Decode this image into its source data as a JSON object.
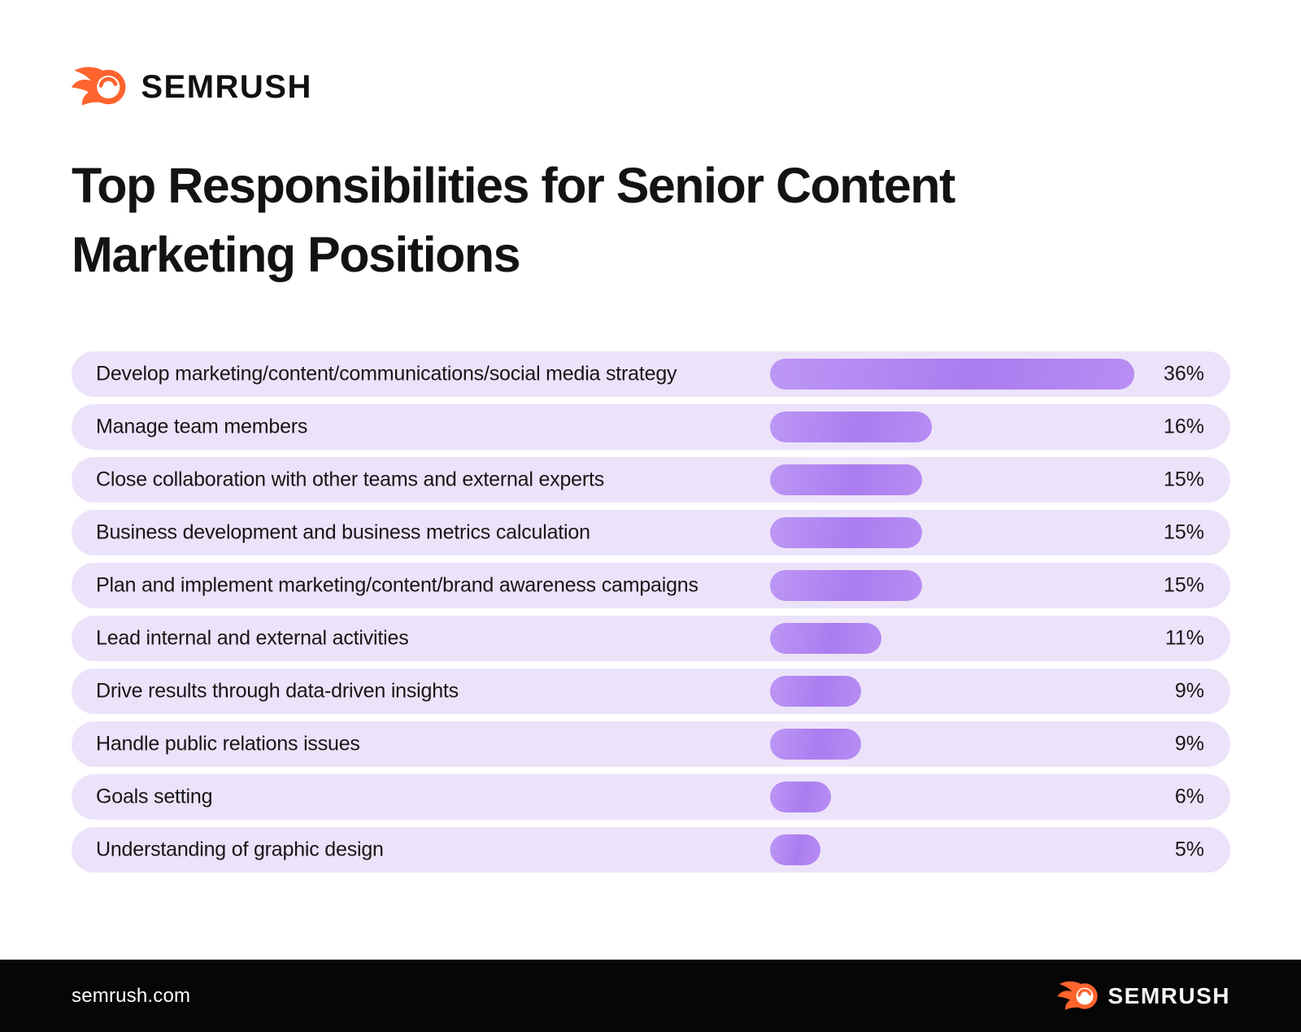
{
  "brand": {
    "wordmark": "SEMRUSH",
    "orange": "#FF642D"
  },
  "title": {
    "line1": "Top Responsibilities for Senior Content",
    "line2": "Marketing Positions"
  },
  "chart_data": {
    "type": "bar",
    "orientation": "horizontal",
    "title": "Top Responsibilities for Senior Content Marketing Positions",
    "unit": "%",
    "xlim": [
      0,
      36
    ],
    "grid": false,
    "legend": false,
    "categories": [
      "Develop marketing/content/communications/social media strategy",
      "Manage team members",
      "Close collaboration with other teams and external experts",
      "Business development and business metrics calculation",
      "Plan and implement marketing/content/brand awareness campaigns",
      "Lead internal and external activities",
      "Drive results through data-driven insights",
      "Handle public relations issues",
      "Goals setting",
      "Understanding of graphic design"
    ],
    "values": [
      36,
      16,
      15,
      15,
      15,
      11,
      9,
      9,
      6,
      5
    ],
    "value_labels": [
      "36%",
      "16%",
      "15%",
      "15%",
      "15%",
      "11%",
      "9%",
      "9%",
      "6%",
      "5%"
    ],
    "bar_color": "#B287F2",
    "track_color": "#ECE3FA"
  },
  "footer": {
    "site": "semrush.com",
    "wordmark": "SEMRUSH"
  }
}
